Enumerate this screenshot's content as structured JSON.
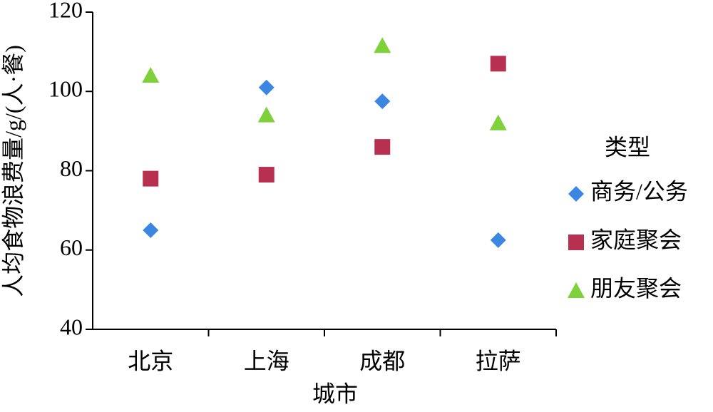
{
  "chart_data": {
    "type": "scatter",
    "x_label": "城市",
    "y_label": "人均食物浪费量/g/(人·餐)",
    "categories": [
      "北京",
      "上海",
      "成都",
      "拉萨"
    ],
    "ylim": [
      40,
      120
    ],
    "yticks": [
      40,
      60,
      80,
      100,
      120
    ],
    "legend_title": "类型",
    "legend": "right",
    "series": [
      {
        "name": "商务/公务",
        "color": "#3b86e0",
        "marker": "diamond",
        "values": [
          65,
          101,
          97.5,
          62.5
        ]
      },
      {
        "name": "家庭聚会",
        "color": "#b8304f",
        "marker": "square",
        "values": [
          78,
          79,
          86,
          107
        ]
      },
      {
        "name": "朋友聚会",
        "color": "#7fd13b",
        "marker": "triangle",
        "values": [
          104,
          94,
          111.5,
          92
        ]
      }
    ]
  }
}
